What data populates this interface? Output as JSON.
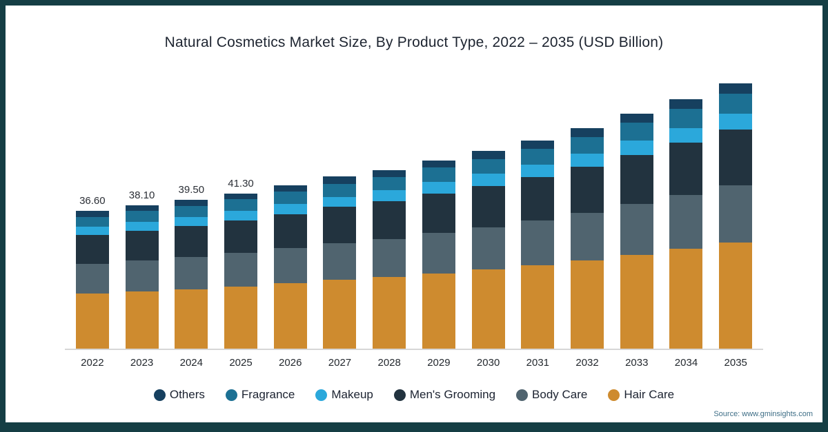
{
  "title": "Natural Cosmetics Market Size, By Product Type, 2022 – 2035 (USD Billion)",
  "source": "Source: www.gminsights.com",
  "colors": {
    "frame": "#153e44",
    "axis_line": "#d6d6d6",
    "background": "#ffffff"
  },
  "chart_data": {
    "type": "bar",
    "stacked": true,
    "title": "Natural Cosmetics Market Size, By Product Type, 2022 – 2035 (USD Billion)",
    "xlabel": "",
    "ylabel": "USD Billion",
    "grid": false,
    "legend_position": "bottom",
    "categories": [
      "2022",
      "2023",
      "2024",
      "2025",
      "2026",
      "2027",
      "2028",
      "2029",
      "2030",
      "2031",
      "2032",
      "2033",
      "2034",
      "2035"
    ],
    "totals": [
      36.6,
      38.1,
      39.5,
      41.3,
      43.4,
      45.8,
      47.5,
      50.0,
      52.6,
      55.4,
      58.6,
      62.5,
      66.3,
      70.5
    ],
    "data_labels": [
      "36.60",
      "38.10",
      "39.50",
      "41.30",
      "",
      "",
      "",
      "",
      "",
      "",
      "",
      "",
      "",
      ""
    ],
    "series": [
      {
        "name": "Hair Care",
        "color": "#ce8b2f",
        "values": [
          14.6,
          15.2,
          15.8,
          16.5,
          17.4,
          18.3,
          19.0,
          20.0,
          21.0,
          22.2,
          23.4,
          25.0,
          26.5,
          28.2
        ]
      },
      {
        "name": "Body Care",
        "color": "#50646f",
        "values": [
          7.9,
          8.2,
          8.5,
          8.9,
          9.3,
          9.8,
          10.2,
          10.8,
          11.3,
          11.9,
          12.6,
          13.4,
          14.3,
          15.2
        ]
      },
      {
        "name": "Men's Grooming",
        "color": "#22333f",
        "values": [
          7.7,
          8.0,
          8.3,
          8.7,
          9.1,
          9.6,
          10.0,
          10.5,
          11.0,
          11.6,
          12.3,
          13.1,
          13.9,
          14.8
        ]
      },
      {
        "name": "Makeup",
        "color": "#2ba8db",
        "values": [
          2.2,
          2.3,
          2.4,
          2.5,
          2.6,
          2.7,
          2.9,
          3.0,
          3.2,
          3.3,
          3.5,
          3.8,
          4.0,
          4.2
        ]
      },
      {
        "name": "Fragrance",
        "color": "#1c7093",
        "values": [
          2.7,
          2.9,
          3.0,
          3.1,
          3.3,
          3.4,
          3.6,
          3.8,
          3.9,
          4.2,
          4.4,
          4.7,
          5.0,
          5.3
        ]
      },
      {
        "name": "Others",
        "color": "#16405f",
        "values": [
          1.5,
          1.5,
          1.5,
          1.6,
          1.7,
          2.0,
          1.8,
          1.9,
          2.2,
          2.2,
          2.4,
          2.5,
          2.6,
          2.8
        ]
      }
    ],
    "legend_order": [
      "Others",
      "Fragrance",
      "Makeup",
      "Men's Grooming",
      "Body Care",
      "Hair Care"
    ]
  }
}
